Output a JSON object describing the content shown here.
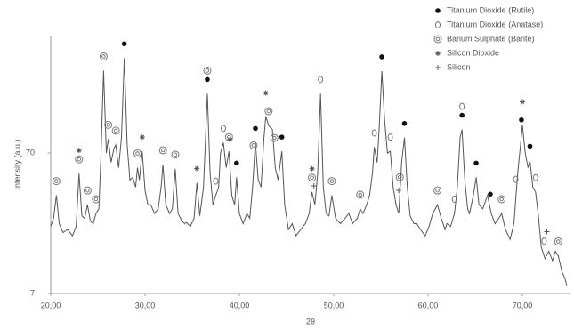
{
  "chart_data": {
    "type": "line",
    "xlabel": "2θ",
    "ylabel": "Intensity (a.u.)",
    "x": [
      20.0,
      20.3,
      20.6,
      20.9,
      21.3,
      21.8,
      22.3,
      22.7,
      23.0,
      23.3,
      23.6,
      23.9,
      24.2,
      24.5,
      24.8,
      25.1,
      25.3,
      25.6,
      25.9,
      26.1,
      26.4,
      26.7,
      26.9,
      27.2,
      27.5,
      27.8,
      28.1,
      28.4,
      28.7,
      29.0,
      29.2,
      29.4,
      29.7,
      30.0,
      30.3,
      30.6,
      31.0,
      31.4,
      31.7,
      31.9,
      32.2,
      32.6,
      32.9,
      33.2,
      33.5,
      33.9,
      34.2,
      34.4,
      34.8,
      35.2,
      35.5,
      35.8,
      36.2,
      36.6,
      36.9,
      37.2,
      37.5,
      37.8,
      38.0,
      38.3,
      38.6,
      38.9,
      39.2,
      39.5,
      39.7,
      40.0,
      40.4,
      40.8,
      41.1,
      41.4,
      41.7,
      42.0,
      42.3,
      42.6,
      42.8,
      43.1,
      43.5,
      43.8,
      44.1,
      44.5,
      44.8,
      45.2,
      45.6,
      46.0,
      46.5,
      47.0,
      47.4,
      47.7,
      48.0,
      48.3,
      48.6,
      48.9,
      49.2,
      49.5,
      49.8,
      50.2,
      50.7,
      51.2,
      51.6,
      52.0,
      52.5,
      52.8,
      53.1,
      53.5,
      53.8,
      54.1,
      54.3,
      54.6,
      54.8,
      55.1,
      55.4,
      55.7,
      56.0,
      56.3,
      56.6,
      56.9,
      57.2,
      57.5,
      57.8,
      58.1,
      58.5,
      58.8,
      59.2,
      59.7,
      60.1,
      60.5,
      61.0,
      61.4,
      61.8,
      62.0,
      62.4,
      62.8,
      63.1,
      63.4,
      63.6,
      63.9,
      64.2,
      64.4,
      64.8,
      65.1,
      65.4,
      65.8,
      66.3,
      66.7,
      67.1,
      67.5,
      67.8,
      68.2,
      68.7,
      69.1,
      69.5,
      69.8,
      70.0,
      70.3,
      70.6,
      70.8,
      71.1,
      71.4,
      71.7,
      72.0,
      72.4,
      72.8,
      73.2,
      73.5,
      73.8,
      74.2,
      74.5,
      74.7
    ],
    "series": [
      {
        "color": "#555555",
        "values": [
          21,
          24,
          35,
          22,
          19,
          20,
          18,
          21,
          50,
          25,
          24,
          30,
          23,
          22,
          26,
          28,
          60,
          270,
          70,
          88,
          60,
          75,
          80,
          55,
          90,
          332,
          80,
          45,
          47,
          40,
          55,
          45,
          72,
          38,
          30,
          30,
          26,
          28,
          40,
          58,
          30,
          26,
          28,
          54,
          26,
          23,
          22,
          22.4,
          21,
          24,
          43,
          25,
          40,
          185,
          50,
          30,
          35,
          40,
          70,
          83,
          55,
          72,
          35,
          30,
          47,
          26,
          22,
          26,
          24,
          40,
          83,
          45,
          40,
          90,
          128,
          110,
          103,
          55,
          45,
          72,
          30,
          20,
          22,
          18,
          20,
          22,
          26,
          37,
          30,
          50,
          185,
          40,
          26,
          25,
          35,
          24,
          22,
          24,
          26,
          22,
          24,
          28,
          26,
          30,
          35,
          50,
          77,
          60,
          100,
          268,
          120,
          70,
          72,
          40,
          30,
          26,
          60,
          90,
          40,
          25,
          22,
          22,
          20,
          18,
          21,
          26,
          30,
          24,
          20,
          22,
          21,
          26,
          40,
          90,
          103,
          45,
          28,
          26,
          35,
          47,
          30,
          28,
          35,
          26,
          22,
          24,
          26,
          20,
          17,
          22,
          50,
          80,
          111,
          70,
          55,
          62,
          40,
          37,
          25,
          15,
          12.4,
          14,
          12,
          14,
          13,
          10,
          9,
          8
        ]
      }
    ],
    "xlim": [
      20,
      75
    ],
    "xticks": [
      {
        "value": 20,
        "label": "20,00"
      },
      {
        "value": 30,
        "label": "30,00"
      },
      {
        "value": 40,
        "label": "40,00"
      },
      {
        "value": 50,
        "label": "50,00"
      },
      {
        "value": 60,
        "label": "60,00"
      },
      {
        "value": 70,
        "label": "70,00"
      }
    ],
    "ylim": [
      7,
      480
    ],
    "yticks": [
      7,
      70
    ],
    "log_y": true,
    "grid": false,
    "legend": "upper right",
    "phases": [
      {
        "name": "Titanium Dioxide (Rutile)",
        "symbol": "dot",
        "color": "#111111",
        "peaks": [
          27.8,
          36.6,
          39.7,
          41.7,
          44.5,
          55.1,
          57.5,
          63.6,
          65.1,
          66.6,
          69.9,
          70.8
        ]
      },
      {
        "name": "Titanium Dioxide (Anatase)",
        "symbol": "circle",
        "color": "#777777",
        "peaks": [
          37.5,
          38.3,
          48.6,
          54.3,
          56.0,
          62.8,
          63.6,
          69.3,
          71.4,
          72.3
        ]
      },
      {
        "name": "Barium Sulphate (Barite)",
        "symbol": "ring",
        "color": "#777777",
        "peaks": [
          20.6,
          23.0,
          23.9,
          24.8,
          25.6,
          26.1,
          26.9,
          29.2,
          31.9,
          33.2,
          36.6,
          38.9,
          41.5,
          43.1,
          43.7,
          47.7,
          49.8,
          52.8,
          57.0,
          61.0,
          67.8,
          73.8
        ]
      },
      {
        "name": "Silicon Dioxide",
        "symbol": "star",
        "color": "#555555",
        "peaks": [
          23.0,
          29.7,
          35.5,
          39.0,
          42.8,
          47.7,
          70.0
        ]
      },
      {
        "name": "Silicon",
        "symbol": "plus",
        "color": "#555555",
        "peaks": [
          47.9,
          56.9,
          72.6
        ]
      }
    ]
  }
}
